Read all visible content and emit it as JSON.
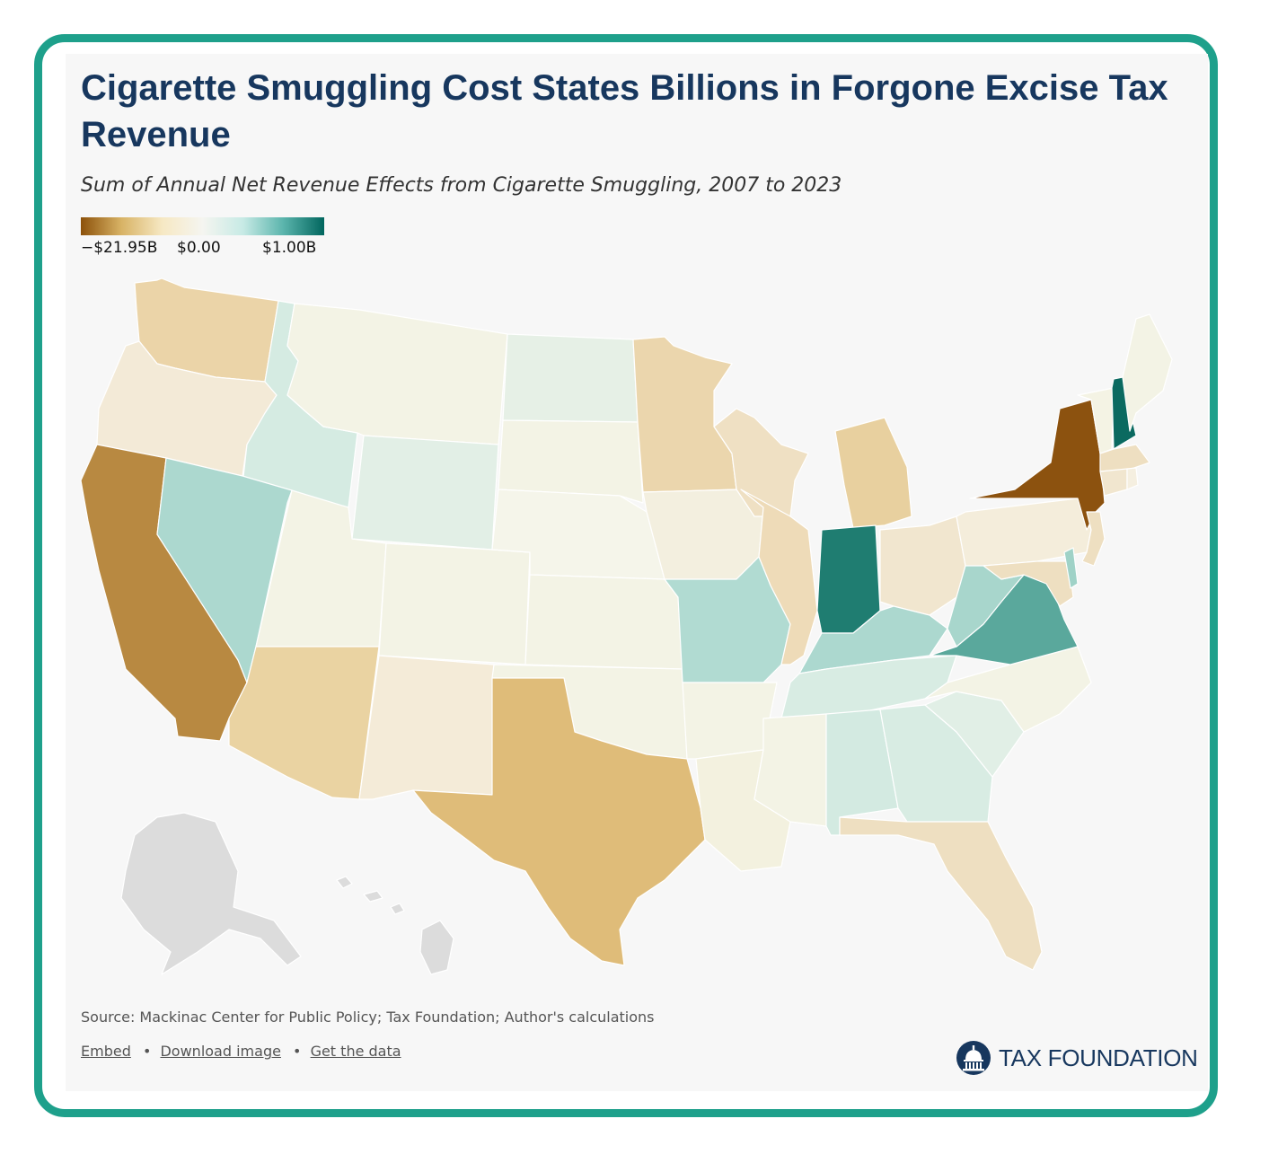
{
  "header": {
    "title": "Cigarette Smuggling Cost States Billions in Forgone Excise Tax Revenue",
    "subtitle": "Sum of Annual Net Revenue Effects from Cigarette Smuggling, 2007 to 2023"
  },
  "legend": {
    "min_label": "−$21.95B",
    "mid_label": "$0.00",
    "max_label": "$1.00B",
    "colors": [
      "#8c510a",
      "#d8b365",
      "#f6e8c3",
      "#f5f5f0",
      "#c7eae5",
      "#5ab4ac",
      "#01665e"
    ]
  },
  "footer": {
    "source": "Source: Mackinac Center for Public Policy; Tax Foundation; Author's calculations",
    "embed_label": "Embed",
    "download_label": "Download image",
    "data_label": "Get the data",
    "separator": "•",
    "logo_text": "TAX FOUNDATION"
  },
  "map_data": {
    "no_data_color": "#dcdcdc",
    "states": [
      {
        "abbr": "WA",
        "color": "#ebd4a8"
      },
      {
        "abbr": "OR",
        "color": "#f3ead7"
      },
      {
        "abbr": "CA",
        "color": "#b88941"
      },
      {
        "abbr": "ID",
        "color": "#d5ebe2"
      },
      {
        "abbr": "NV",
        "color": "#acd8cf"
      },
      {
        "abbr": "MT",
        "color": "#f3f3e5"
      },
      {
        "abbr": "WY",
        "color": "#e2efe6"
      },
      {
        "abbr": "UT",
        "color": "#f3f3e5"
      },
      {
        "abbr": "AZ",
        "color": "#ead3a2"
      },
      {
        "abbr": "CO",
        "color": "#f3f3e5"
      },
      {
        "abbr": "NM",
        "color": "#f4ebd8"
      },
      {
        "abbr": "ND",
        "color": "#e6f0e6"
      },
      {
        "abbr": "SD",
        "color": "#f3f3e5"
      },
      {
        "abbr": "NE",
        "color": "#f5f5ea"
      },
      {
        "abbr": "KS",
        "color": "#f3f3e5"
      },
      {
        "abbr": "OK",
        "color": "#f3f3e5"
      },
      {
        "abbr": "TX",
        "color": "#dfbc79"
      },
      {
        "abbr": "MN",
        "color": "#ebd6ad"
      },
      {
        "abbr": "IA",
        "color": "#f3efdf"
      },
      {
        "abbr": "MO",
        "color": "#b1dbd2"
      },
      {
        "abbr": "AR",
        "color": "#f3f3e5"
      },
      {
        "abbr": "LA",
        "color": "#f3f1df"
      },
      {
        "abbr": "WI",
        "color": "#efe0c3"
      },
      {
        "abbr": "IL",
        "color": "#eedbb8"
      },
      {
        "abbr": "MI",
        "color": "#e8d09f"
      },
      {
        "abbr": "IN",
        "color": "#1f7d71"
      },
      {
        "abbr": "OH",
        "color": "#f1e6cf"
      },
      {
        "abbr": "KY",
        "color": "#acd8cf"
      },
      {
        "abbr": "TN",
        "color": "#d8ece3"
      },
      {
        "abbr": "MS",
        "color": "#f3f3e5"
      },
      {
        "abbr": "AL",
        "color": "#d3eae1"
      },
      {
        "abbr": "GA",
        "color": "#d8ece3"
      },
      {
        "abbr": "FL",
        "color": "#eedfc1"
      },
      {
        "abbr": "SC",
        "color": "#e1efe6"
      },
      {
        "abbr": "NC",
        "color": "#f3f3e5"
      },
      {
        "abbr": "VA",
        "color": "#5aa89c"
      },
      {
        "abbr": "WV",
        "color": "#a8d6cc"
      },
      {
        "abbr": "PA",
        "color": "#f4eddb"
      },
      {
        "abbr": "NY",
        "color": "#8c520f"
      },
      {
        "abbr": "NJ",
        "color": "#eedfc1"
      },
      {
        "abbr": "MD",
        "color": "#eedfc1"
      },
      {
        "abbr": "DE",
        "color": "#9fd2c7"
      },
      {
        "abbr": "VT",
        "color": "#f4f3e4"
      },
      {
        "abbr": "NH",
        "color": "#0b6a60"
      },
      {
        "abbr": "ME",
        "color": "#f3f3e5"
      },
      {
        "abbr": "MA",
        "color": "#eedfc1"
      },
      {
        "abbr": "CT",
        "color": "#f1e6cf"
      },
      {
        "abbr": "RI",
        "color": "#f5efe0"
      },
      {
        "abbr": "AK",
        "color": "#dcdcdc"
      },
      {
        "abbr": "HI",
        "color": "#dcdcdc"
      }
    ]
  }
}
